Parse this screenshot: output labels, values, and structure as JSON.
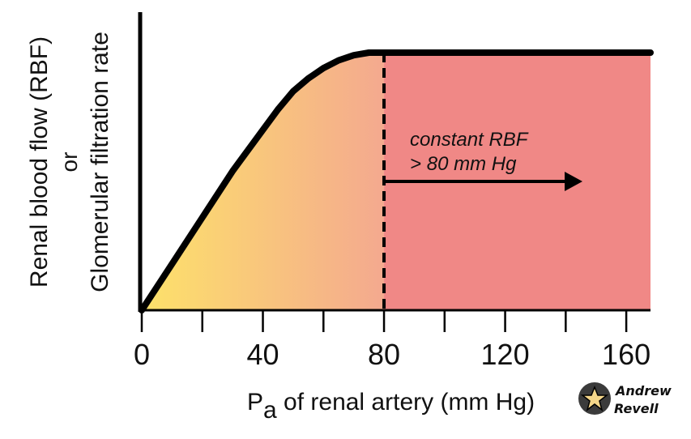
{
  "chart_data": {
    "type": "line",
    "title": "",
    "xlabel_main": "P",
    "xlabel_sub": "a",
    "xlabel_rest": " of renal artery (mm Hg)",
    "ylabel_line1": "Renal blood flow (RBF)",
    "ylabel_line2": "or",
    "ylabel_line3": "Glomerular filtration rate",
    "x_ticks": [
      0,
      40,
      80,
      120,
      160
    ],
    "x_ticks_labels": [
      "0",
      "40",
      "80",
      "120",
      "160"
    ],
    "x_minor_ticks": [
      20,
      60,
      100,
      140
    ],
    "xlim": [
      0,
      168
    ],
    "ylim": [
      0,
      100
    ],
    "y_tick_labels_shown": false,
    "series": [
      {
        "x": [
          0,
          10,
          20,
          30,
          40,
          45,
          50,
          55,
          60,
          65,
          70,
          75,
          80,
          90,
          100,
          110,
          120,
          130,
          140,
          150,
          160,
          168
        ],
        "y": [
          0,
          18,
          36,
          54,
          70,
          78,
          85,
          90,
          94,
          97,
          99,
          100,
          100,
          100,
          100,
          100,
          100,
          100,
          100,
          100,
          100,
          100
        ]
      }
    ],
    "threshold_x": 80,
    "annotation_line1": "constant RBF",
    "annotation_line2": "> 80 mm Hg",
    "arrow_from_x": 80,
    "arrow_to_x": 145,
    "fill_colors": {
      "start": "#fde26a",
      "mid": "#f4a98f",
      "end": "#f08886"
    },
    "line_color": "#000000"
  },
  "watermark": {
    "line1": "Andrew",
    "line2": "Revell"
  }
}
